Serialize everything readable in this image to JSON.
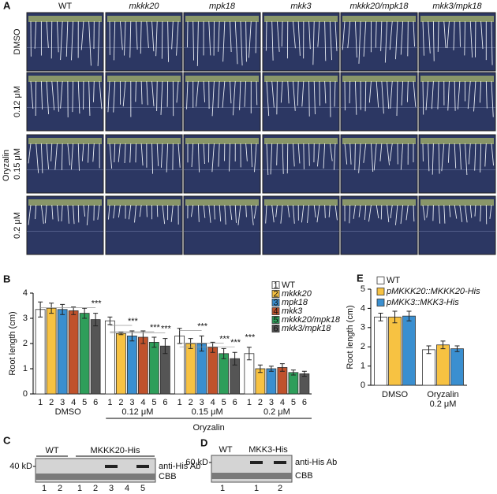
{
  "panel_a": {
    "label": "A",
    "columns": [
      "WT",
      "mkkk20",
      "mpk18",
      "mkk3",
      "mkkk20/mpk18",
      "mkk3/mpk18"
    ],
    "rows": [
      "DMSO",
      "0.12 μM",
      "0.15 μM",
      "0.2 μM"
    ],
    "treatment": "Oryzalin"
  },
  "chart_data": [
    {
      "type": "bar",
      "panel": "B",
      "ylabel": "Root length (cm)",
      "categories": [
        "DMSO",
        "0.12 μM",
        "0.15 μM",
        "0.2 μM"
      ],
      "group_label": "Oryzalin",
      "bar_labels": [
        1,
        2,
        3,
        4,
        5,
        6
      ],
      "series": [
        {
          "name": "WT",
          "color": "#ffffff",
          "values": [
            3.35,
            2.9,
            2.3,
            1.6
          ],
          "errors": [
            0.3,
            0.15,
            0.3,
            0.25
          ]
        },
        {
          "name": "mkkk20",
          "color": "#f7c242",
          "values": [
            3.4,
            2.4,
            2.0,
            1.0
          ],
          "errors": [
            0.2,
            0.05,
            0.2,
            0.15
          ]
        },
        {
          "name": "mpk18",
          "color": "#3a8fd0",
          "values": [
            3.35,
            2.3,
            2.0,
            1.0
          ],
          "errors": [
            0.2,
            0.2,
            0.3,
            0.1
          ]
        },
        {
          "name": "mkk3",
          "color": "#c0522c",
          "values": [
            3.3,
            2.25,
            1.85,
            1.05
          ],
          "errors": [
            0.15,
            0.25,
            0.2,
            0.15
          ]
        },
        {
          "name": "mkkk20/mpk18",
          "color": "#2e9e5a",
          "values": [
            3.2,
            2.05,
            1.6,
            0.85
          ],
          "errors": [
            0.2,
            0.2,
            0.2,
            0.1
          ]
        },
        {
          "name": "mkk3/mpk18",
          "color": "#555555",
          "values": [
            2.95,
            1.9,
            1.4,
            0.8
          ],
          "errors": [
            0.25,
            0.3,
            0.25,
            0.1
          ]
        }
      ],
      "ylim": [
        0,
        4
      ],
      "yticks": [
        0,
        1,
        2,
        3,
        4
      ],
      "annotations": [
        "***",
        "***",
        "***",
        "***",
        "***",
        "***",
        "***",
        "***"
      ]
    },
    {
      "type": "bar",
      "panel": "E",
      "ylabel": "Root length (cm)",
      "categories": [
        [
          "DMSO"
        ],
        [
          "Oryzalin",
          "0.2 μM"
        ]
      ],
      "series": [
        {
          "name": "WT",
          "color": "#ffffff",
          "values": [
            3.55,
            1.85
          ],
          "errors": [
            0.2,
            0.2
          ]
        },
        {
          "name": "pMKKK20::MKKK20-His",
          "color": "#f7c242",
          "values": [
            3.55,
            2.1
          ],
          "errors": [
            0.3,
            0.2
          ]
        },
        {
          "name": "pMKK3::MKK3-His",
          "color": "#3a8fd0",
          "values": [
            3.6,
            1.9
          ],
          "errors": [
            0.25,
            0.15
          ]
        }
      ],
      "ylim": [
        0,
        5
      ],
      "yticks": [
        0,
        1,
        2,
        3,
        4,
        5
      ]
    }
  ],
  "panel_c": {
    "label": "C",
    "groups": [
      "WT",
      "MKKK20-His"
    ],
    "marker": "40 kD",
    "bands": [
      "anti-His Ab",
      "CBB"
    ],
    "lanes": [
      1,
      2,
      1,
      2,
      3,
      4,
      5
    ]
  },
  "panel_d": {
    "label": "D",
    "groups": [
      "WT",
      "MKK3-His"
    ],
    "marker": "60 kD",
    "bands": [
      "anti-His Ab",
      "CBB"
    ],
    "lanes": [
      1,
      1,
      2
    ]
  }
}
